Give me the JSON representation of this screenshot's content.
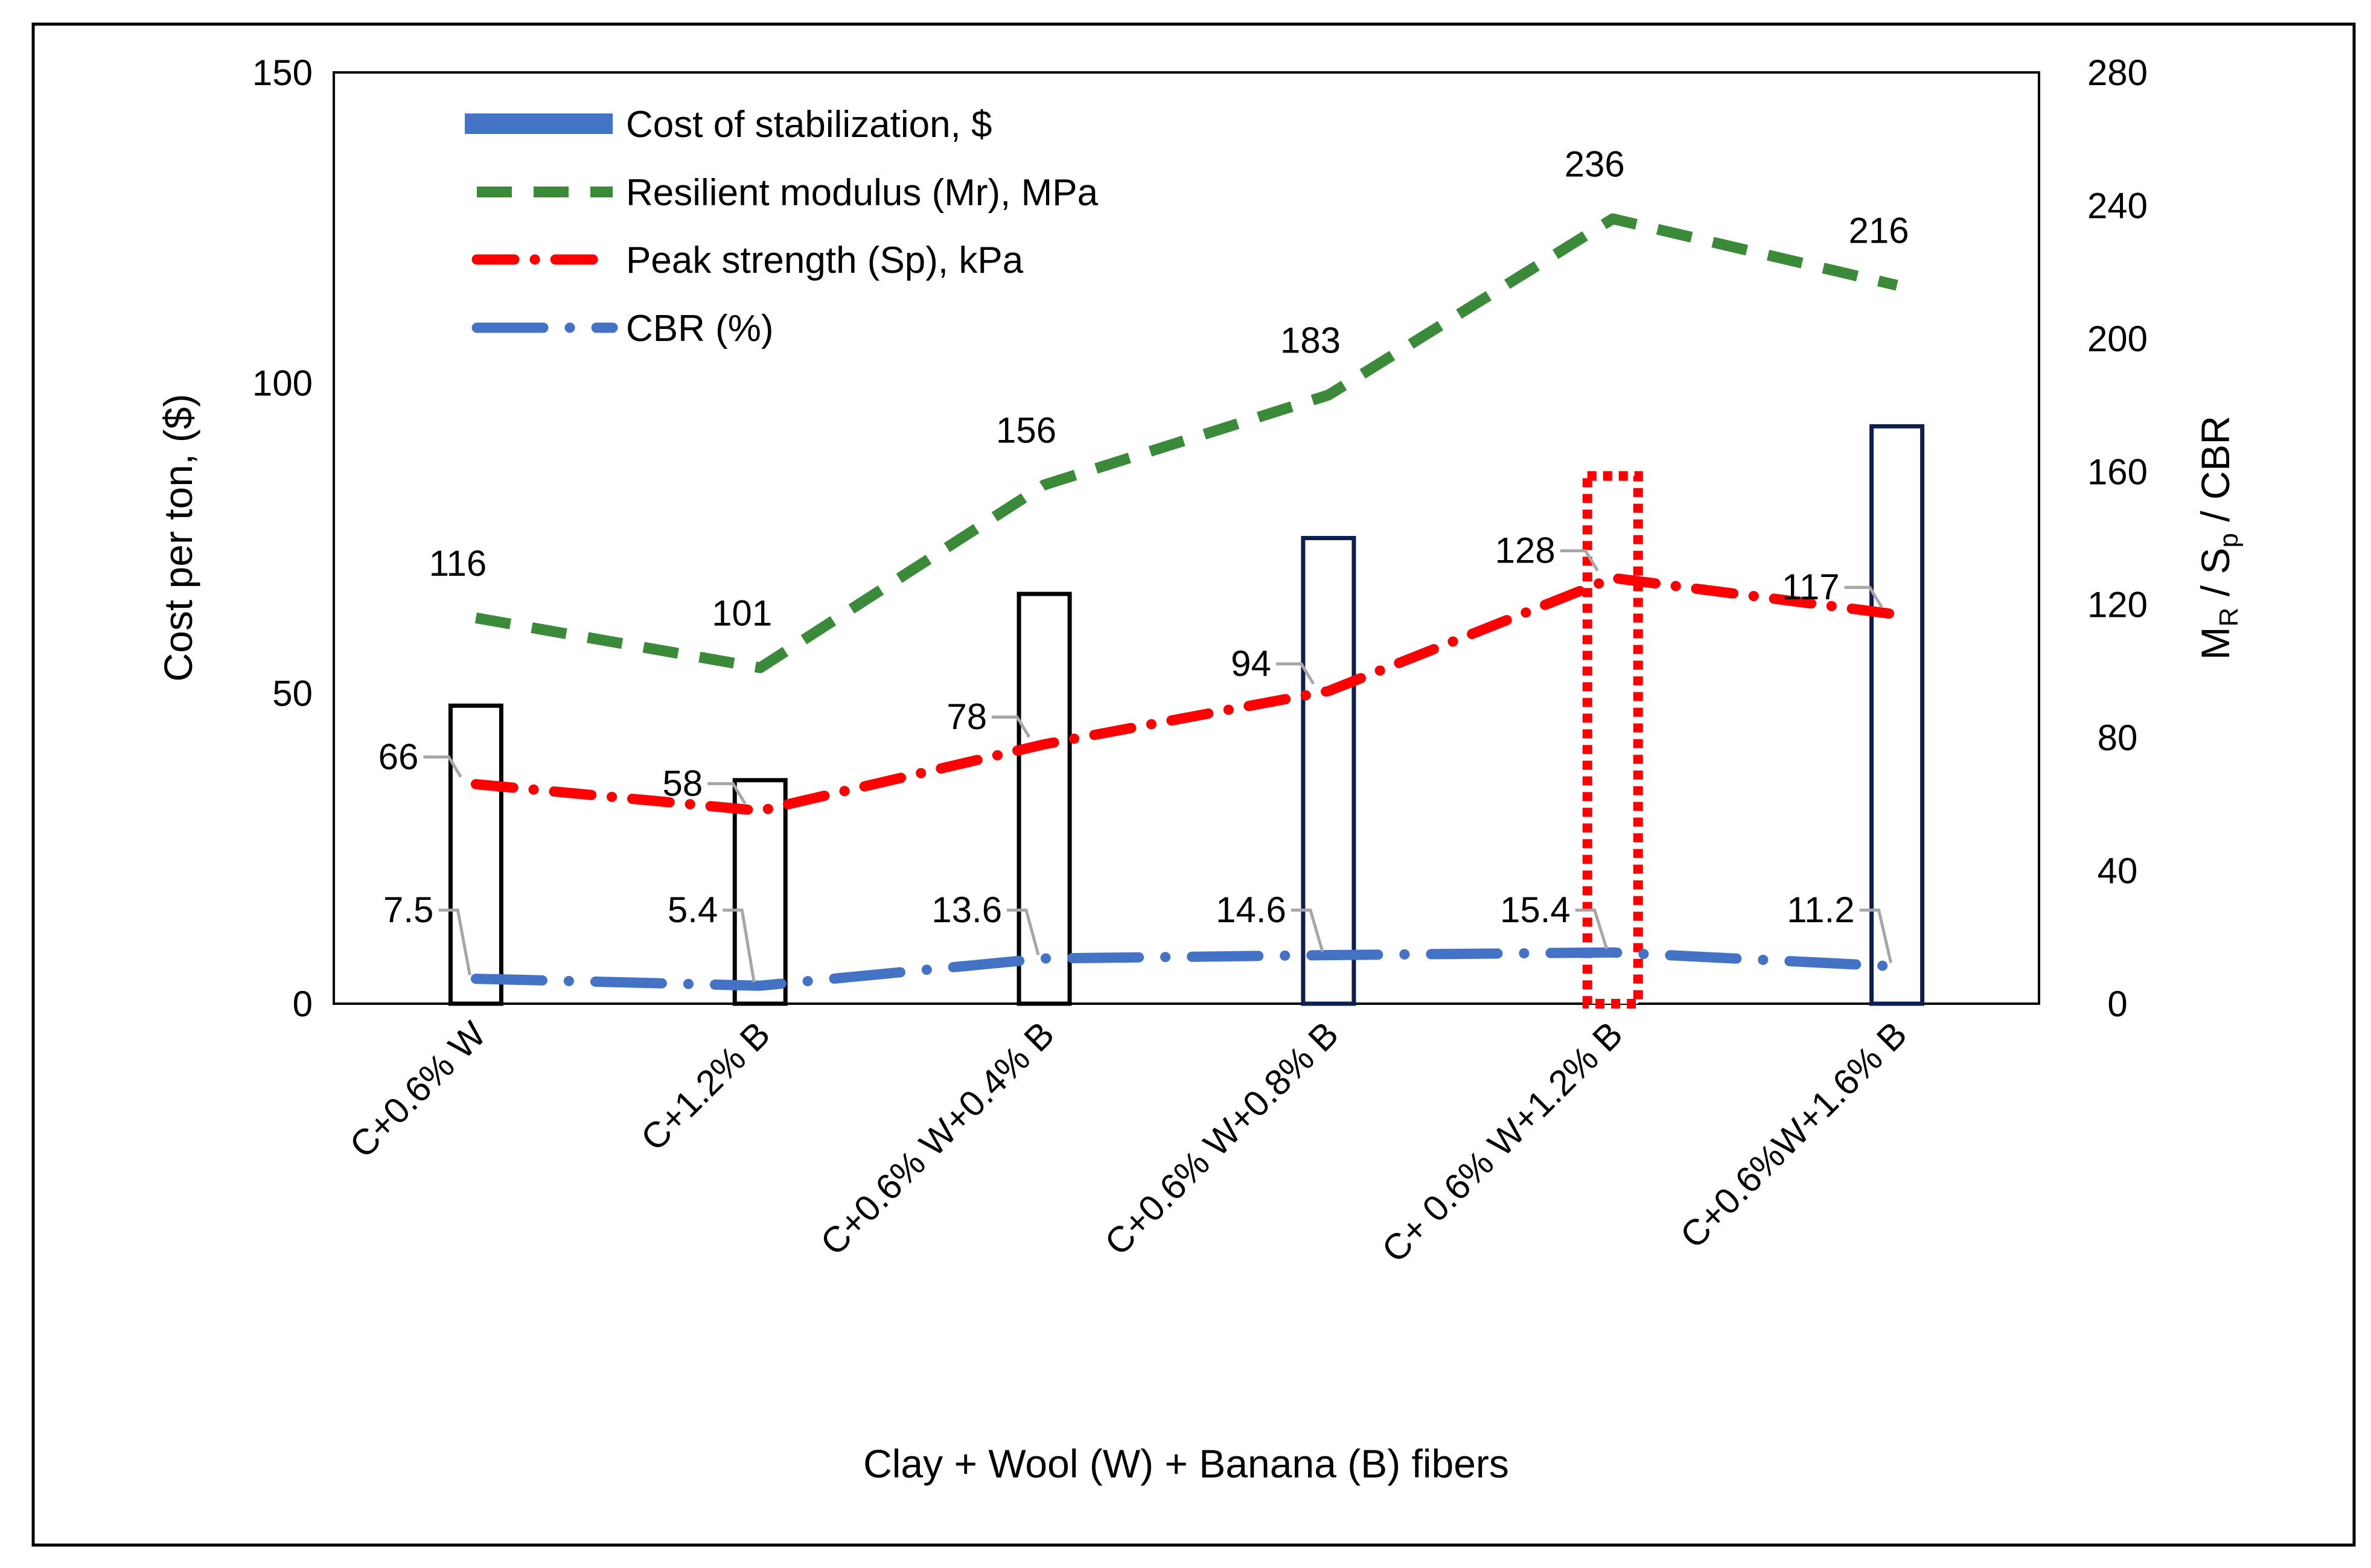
{
  "chart_data": {
    "type": "bar+line",
    "x_title": "Clay + Wool (W) + Banana (B) fibers",
    "y_left_title": "Cost per ton, ($)",
    "y_right_title": {
      "main": "M",
      "sub1": "R",
      "mid": " / S",
      "sub2": "p",
      "end": " / CBR"
    },
    "y_left_range": [
      0,
      150
    ],
    "y_left_ticks": [
      "0",
      "50",
      "100",
      "150"
    ],
    "y_right_range": [
      0,
      280
    ],
    "y_right_ticks": [
      "0",
      "40",
      "80",
      "120",
      "160",
      "200",
      "240",
      "280"
    ],
    "categories": [
      "C+0.6% W",
      "C+1.2% B",
      "C+0.6% W+0.4% B",
      "C+0.6% W+0.8% B",
      "C+ 0.6% W+1.2% B",
      "C+0.6%W+1.6% B"
    ],
    "bars": {
      "name": "Cost of stabilization, $",
      "values": [
        48,
        36,
        66,
        75,
        85,
        93
      ],
      "edge_colors": [
        "#000000",
        "#000000",
        "#000000",
        "#0d1f4f",
        "#ff0000",
        "#0d1f4f"
      ],
      "highlighted_index": 4
    },
    "series": [
      {
        "name": "Resilient modulus (Mr), MPa",
        "color": "#3a8a3a",
        "style": "dash",
        "values": [
          116,
          101,
          156,
          183,
          236,
          216
        ],
        "labels": [
          "116",
          "101",
          "156",
          "183",
          "236",
          "216"
        ]
      },
      {
        "name": "Peak strength (Sp), kPa",
        "color": "#ff0000",
        "style": "dashdot",
        "values": [
          66,
          58,
          78,
          94,
          128,
          117
        ],
        "labels": [
          "66",
          "58",
          "78",
          "94",
          "128",
          "117"
        ]
      },
      {
        "name": "CBR (%)",
        "color": "#4472c4",
        "style": "longdashdot",
        "values": [
          7.5,
          5.4,
          13.6,
          14.6,
          15.4,
          11.2
        ],
        "labels": [
          "7.5",
          "5.4",
          "13.6",
          "14.6",
          "15.4",
          "11.2"
        ]
      }
    ],
    "legend": [
      "Cost of stabilization, $",
      "Resilient modulus (Mr), MPa",
      "Peak strength (Sp), kPa",
      "CBR (%)"
    ],
    "legend_position": "top-left"
  }
}
